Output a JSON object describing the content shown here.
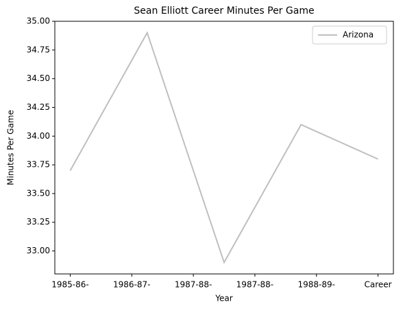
{
  "chart_data": {
    "type": "line",
    "title": "Sean Elliott Career Minutes Per Game",
    "xlabel": "Year",
    "ylabel": "Minutes Per Game",
    "x": [
      0,
      1,
      2,
      3,
      4
    ],
    "series": [
      {
        "name": "Arizona",
        "color": "#bfbfbf",
        "values": [
          33.7,
          34.9,
          32.9,
          34.1,
          33.8
        ]
      }
    ],
    "xlim": [
      -0.2,
      4.2
    ],
    "xticks": [
      {
        "value": 0,
        "label": "1985-86-"
      },
      {
        "value": 0.8,
        "label": "1986-87-"
      },
      {
        "value": 1.6,
        "label": "1987-88-"
      },
      {
        "value": 2.4,
        "label": "1987-88-"
      },
      {
        "value": 3.2,
        "label": "1988-89-"
      },
      {
        "value": 4,
        "label": "Career"
      }
    ],
    "ylim": [
      32.8,
      35.0
    ],
    "yticks": [
      {
        "value": 33,
        "label": "33.00"
      },
      {
        "value": 33.25,
        "label": "33.25"
      },
      {
        "value": 33.5,
        "label": "33.50"
      },
      {
        "value": 33.75,
        "label": "33.75"
      },
      {
        "value": 34,
        "label": "34.00"
      },
      {
        "value": 34.25,
        "label": "34.25"
      },
      {
        "value": 34.5,
        "label": "34.50"
      },
      {
        "value": 34.75,
        "label": "34.75"
      },
      {
        "value": 35,
        "label": "35.00"
      }
    ],
    "legend": "upper right",
    "grid": false
  }
}
